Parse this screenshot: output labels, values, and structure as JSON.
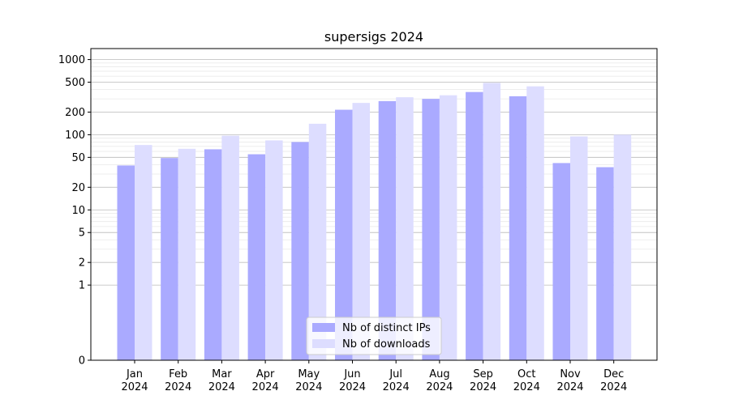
{
  "chart_data": {
    "type": "bar",
    "title": "supersigs 2024",
    "xlabel": "",
    "ylabel": "",
    "yscale": "symlog",
    "ylim": [
      0,
      1400
    ],
    "y_ticks": [
      0,
      1,
      2,
      5,
      10,
      20,
      50,
      100,
      200,
      500,
      1000
    ],
    "grid": true,
    "legend_position": "lower-center",
    "categories": [
      [
        "Jan",
        "2024"
      ],
      [
        "Feb",
        "2024"
      ],
      [
        "Mar",
        "2024"
      ],
      [
        "Apr",
        "2024"
      ],
      [
        "May",
        "2024"
      ],
      [
        "Jun",
        "2024"
      ],
      [
        "Jul",
        "2024"
      ],
      [
        "Aug",
        "2024"
      ],
      [
        "Sep",
        "2024"
      ],
      [
        "Oct",
        "2024"
      ],
      [
        "Nov",
        "2024"
      ],
      [
        "Dec",
        "2024"
      ]
    ],
    "series": [
      {
        "name": "Nb of distinct IPs",
        "color": "#aaaaff",
        "values": [
          39,
          49,
          64,
          55,
          80,
          215,
          280,
          300,
          370,
          325,
          42,
          37
        ]
      },
      {
        "name": "Nb of downloads",
        "color": "#ddddff",
        "values": [
          73,
          65,
          97,
          84,
          140,
          265,
          315,
          335,
          490,
          440,
          95,
          100
        ]
      }
    ]
  }
}
